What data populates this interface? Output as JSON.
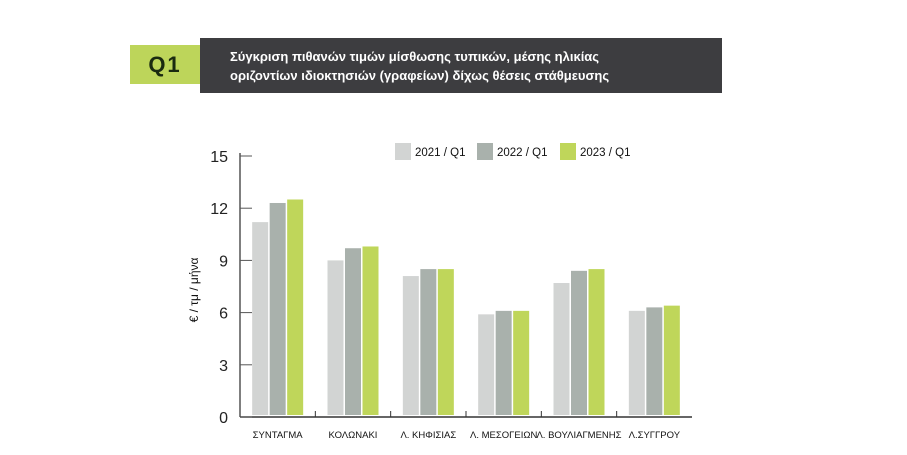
{
  "header": {
    "badge": "Q1",
    "title_line1": "Σύγκριση πιθανών τιμών μίσθωσης τυπικών, μέσης ηλικίας",
    "title_line2": "οριζοντίων ιδιοκτησιών (γραφείων) δίχως θέσεις στάθμευσης"
  },
  "chart_data": {
    "type": "bar",
    "title": "Σύγκριση πιθανών τιμών μίσθωσης τυπικών, μέσης ηλικίας οριζοντίων ιδιοκτησιών (γραφείων) δίχως θέσεις στάθμευσης",
    "ylabel": "€ / τμ / μήνα",
    "xlabel": "",
    "ylim": [
      0,
      15
    ],
    "yticks": [
      0,
      3,
      6,
      9,
      12,
      15
    ],
    "categories": [
      "ΣΥΝΤΑΓΜΑ",
      "ΚΟΛΩΝΑΚΙ",
      "Λ. ΚΗΦΙΣΙΑΣ",
      "Λ. ΜΕΣΟΓΕΙΩΝ",
      "Λ. ΒΟΥΛΙΑΓΜΕΝΗΣ",
      "Λ.ΣΥΓΓΡΟΥ"
    ],
    "series": [
      {
        "name": "2021 / Q1",
        "color": "#d2d4d3",
        "values": [
          11.2,
          9.0,
          8.1,
          5.9,
          7.7,
          6.1
        ]
      },
      {
        "name": "2022 / Q1",
        "color": "#a9b1ac",
        "values": [
          12.3,
          9.7,
          8.5,
          6.1,
          8.4,
          6.3
        ]
      },
      {
        "name": "2023 / Q1",
        "color": "#bfd65a",
        "values": [
          12.5,
          9.8,
          8.5,
          6.1,
          8.5,
          6.4
        ]
      }
    ],
    "legend": "top-right",
    "grid": false
  }
}
